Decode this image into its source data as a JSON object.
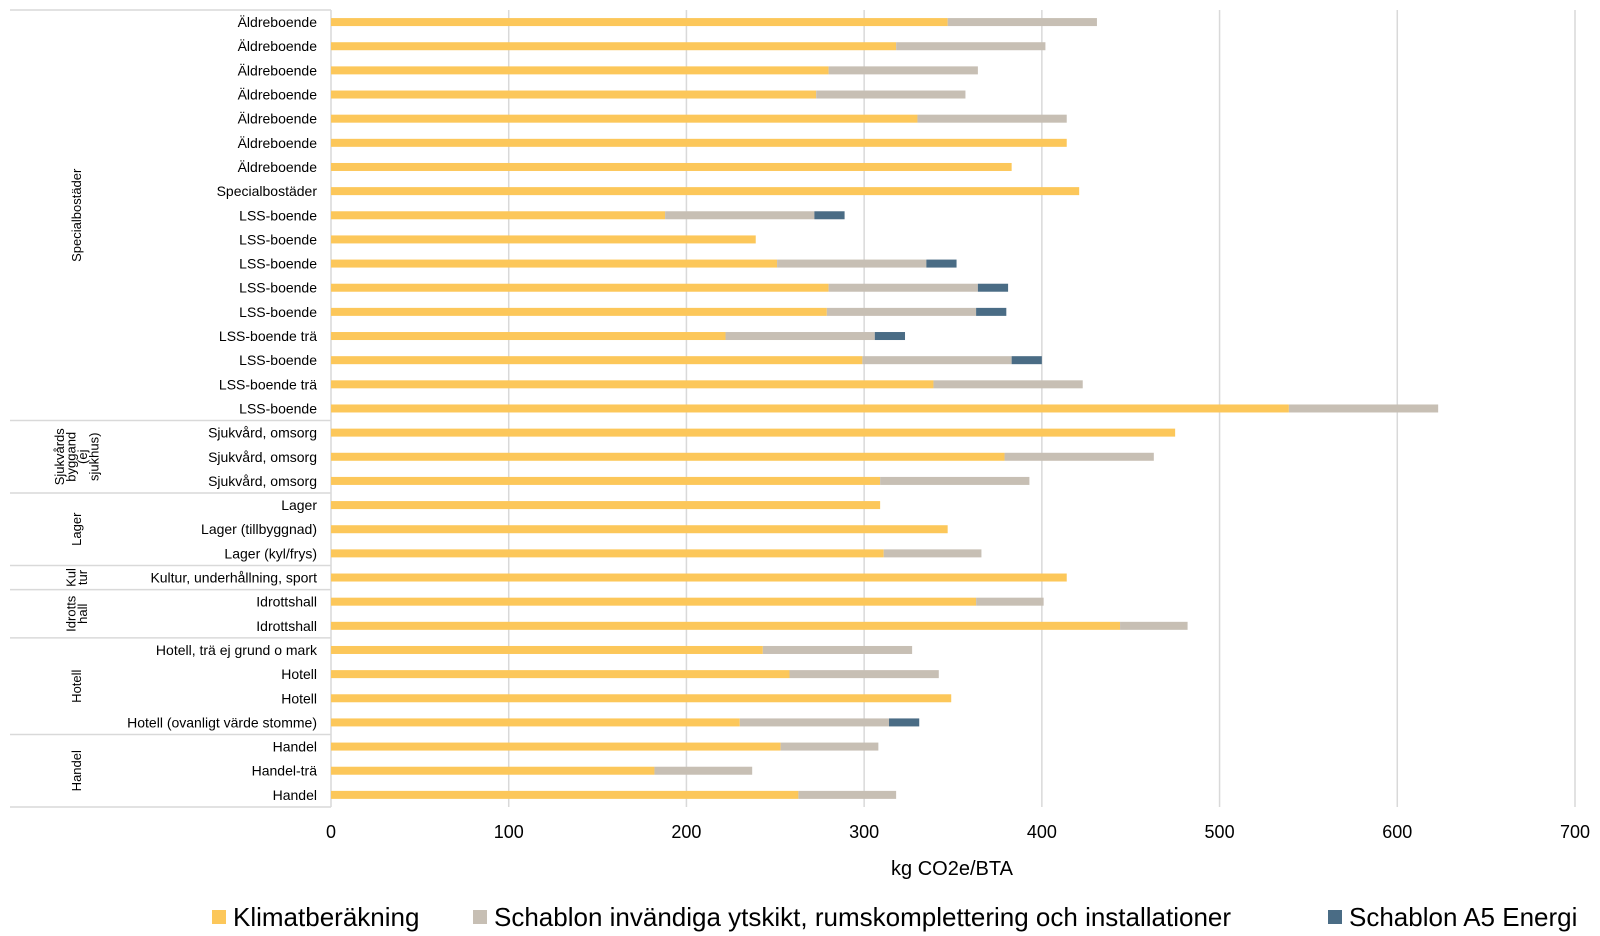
{
  "chart_data": {
    "type": "bar",
    "orientation": "horizontal",
    "stacked": true,
    "xlabel": "kg CO2e/BTA",
    "xlim": [
      0,
      700
    ],
    "x_ticks": [
      0,
      100,
      200,
      300,
      400,
      500,
      600,
      700
    ],
    "grid": "vertical",
    "legend_position": "bottom",
    "colors": [
      "#FCC75A",
      "#C7BFB4",
      "#4A6C85"
    ],
    "categories": [
      "Äldreboende",
      "Äldreboende",
      "Äldreboende",
      "Äldreboende",
      "Äldreboende",
      "Äldreboende",
      "Äldreboende",
      "Specialbostäder",
      "LSS-boende",
      "LSS-boende",
      "LSS-boende",
      "LSS-boende",
      "LSS-boende",
      "LSS-boende trä",
      "LSS-boende",
      "LSS-boende trä",
      "LSS-boende",
      "Sjukvård, omsorg",
      "Sjukvård, omsorg",
      "Sjukvård, omsorg",
      "Lager",
      "Lager (tillbyggnad)",
      "Lager (kyl/frys)",
      "Kultur, underhållning, sport",
      "Idrottshall",
      "Idrottshall ",
      "Hotell, trä ej grund o mark",
      "Hotell",
      "Hotell",
      "Hotell (ovanligt värde stomme)",
      "Handel",
      "Handel-trä",
      "Handel"
    ],
    "groups": [
      {
        "label": "Specialbostäder",
        "start": 0,
        "end": 16
      },
      {
        "label": "Sjukvårds byggand (ej sjukhus)",
        "lines": [
          "Sjukvårds",
          "byggand",
          "(ej",
          "sjukhus)"
        ],
        "start": 17,
        "end": 19
      },
      {
        "label": "Lager",
        "start": 20,
        "end": 22
      },
      {
        "label": "Kul tur",
        "lines": [
          "Kul",
          "tur"
        ],
        "start": 23,
        "end": 23
      },
      {
        "label": "Idrotts hall",
        "lines": [
          "Idrotts",
          "hall"
        ],
        "start": 24,
        "end": 25
      },
      {
        "label": "Hotell",
        "start": 26,
        "end": 29
      },
      {
        "label": "Handel",
        "start": 30,
        "end": 32
      }
    ],
    "series": [
      {
        "name": "Klimatberäkning",
        "values": [
          347,
          318,
          280,
          273,
          330,
          414,
          383,
          421,
          188,
          239,
          251,
          280,
          279,
          222,
          299,
          339,
          539,
          475,
          379,
          309,
          309,
          347,
          311,
          414,
          363,
          444,
          243,
          258,
          349,
          230,
          253,
          182,
          263
        ]
      },
      {
        "name": "Schablon invändiga ytskikt, rumskomplettering och installationer",
        "values": [
          84,
          84,
          84,
          84,
          84,
          0,
          0,
          0,
          84,
          0,
          84,
          84,
          84,
          84,
          84,
          84,
          84,
          0,
          84,
          84,
          0,
          0,
          55,
          0,
          38,
          38,
          84,
          84,
          0,
          84,
          55,
          55,
          55
        ]
      },
      {
        "name": "Schablon A5 Energi",
        "values": [
          0,
          0,
          0,
          0,
          0,
          0,
          0,
          0,
          17,
          0,
          17,
          17,
          17,
          17,
          17,
          0,
          0,
          0,
          0,
          0,
          0,
          0,
          0,
          0,
          0,
          0,
          0,
          0,
          0,
          17,
          0,
          0,
          0
        ]
      }
    ]
  }
}
